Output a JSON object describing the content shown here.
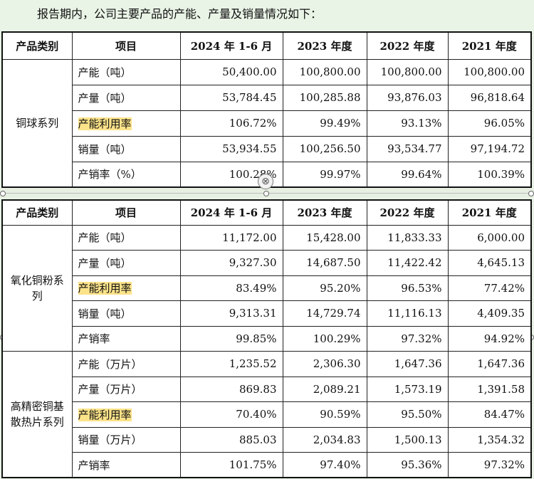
{
  "intro": "报告期内，公司主要产品的产能、产量及销量情况如下：",
  "headers": [
    "产品类别",
    "项目",
    "2024 年 1-6 月",
    "2023 年度",
    "2022 年度",
    "2021 年度"
  ],
  "table1": {
    "category": "铜球系列",
    "rows": [
      {
        "item": "产能（吨）",
        "v": [
          "50,400.00",
          "100,800.00",
          "100,800.00",
          "100,800.00"
        ]
      },
      {
        "item": "产量（吨）",
        "v": [
          "53,784.45",
          "100,285.88",
          "93,876.03",
          "96,818.64"
        ]
      },
      {
        "item": "产能利用率",
        "v": [
          "106.72%",
          "99.49%",
          "93.13%",
          "96.05%"
        ],
        "highlight": true
      },
      {
        "item": "销量（吨）",
        "v": [
          "53,934.55",
          "100,256.50",
          "93,534.77",
          "97,194.72"
        ]
      },
      {
        "item": "产销率（%）",
        "v": [
          "100.28%",
          "99.97%",
          "99.64%",
          "100.39%"
        ]
      }
    ]
  },
  "table2": {
    "groups": [
      {
        "category": "氧化铜粉系列",
        "rows": [
          {
            "item": "产能（吨）",
            "v": [
              "11,172.00",
              "15,428.00",
              "11,833.33",
              "6,000.00"
            ]
          },
          {
            "item": "产量（吨）",
            "v": [
              "9,327.30",
              "14,687.50",
              "11,422.42",
              "4,645.13"
            ]
          },
          {
            "item": "产能利用率",
            "v": [
              "83.49%",
              "95.20%",
              "96.53%",
              "77.42%"
            ],
            "highlight": true
          },
          {
            "item": "销量（吨）",
            "v": [
              "9,313.31",
              "14,729.74",
              "11,116.13",
              "4,409.35"
            ]
          },
          {
            "item": "产销率",
            "v": [
              "99.85%",
              "100.29%",
              "97.32%",
              "94.92%"
            ]
          }
        ]
      },
      {
        "category": "高精密铜基散热片系列",
        "rows": [
          {
            "item": "产能（万片）",
            "v": [
              "1,235.52",
              "2,306.30",
              "1,647.36",
              "1,647.36"
            ]
          },
          {
            "item": "产量（万片）",
            "v": [
              "869.83",
              "2,089.21",
              "1,573.19",
              "1,391.58"
            ]
          },
          {
            "item": "产能利用率",
            "v": [
              "70.40%",
              "90.59%",
              "95.50%",
              "84.47%"
            ],
            "highlight": true
          },
          {
            "item": "销量（万片）",
            "v": [
              "885.03",
              "2,034.83",
              "1,500.13",
              "1,354.32"
            ]
          },
          {
            "item": "产销率",
            "v": [
              "101.75%",
              "97.40%",
              "95.36%",
              "97.32%"
            ]
          }
        ]
      }
    ]
  }
}
